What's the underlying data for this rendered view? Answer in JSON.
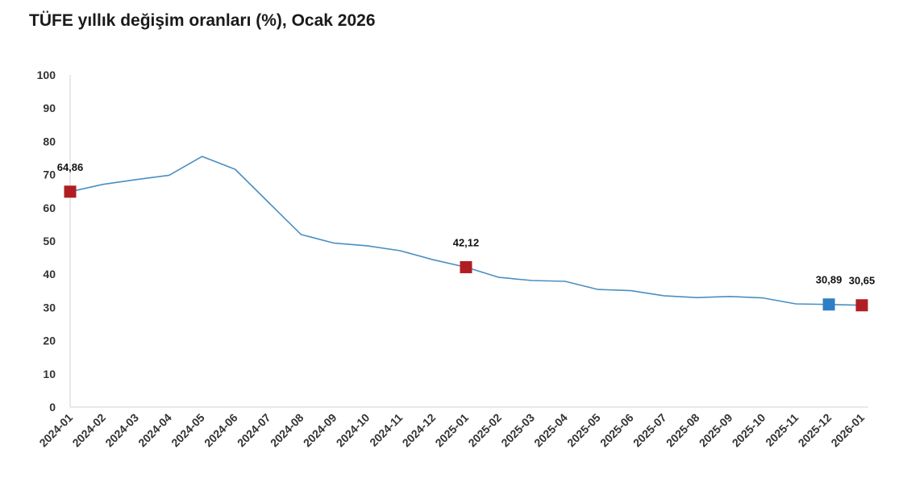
{
  "chart_data": {
    "type": "line",
    "title": "TÜFE yıllık değişim oranları (%), Ocak 2026",
    "xlabel": "",
    "ylabel": "",
    "ylim": [
      0,
      100
    ],
    "yticks": [
      0,
      10,
      20,
      30,
      40,
      50,
      60,
      70,
      80,
      90,
      100
    ],
    "grid": false,
    "x": [
      "2024-01",
      "2024-02",
      "2024-03",
      "2024-04",
      "2024-05",
      "2024-06",
      "2024-07",
      "2024-08",
      "2024-09",
      "2024-10",
      "2024-11",
      "2024-12",
      "2025-01",
      "2025-02",
      "2025-03",
      "2025-04",
      "2025-05",
      "2025-06",
      "2025-07",
      "2025-08",
      "2025-09",
      "2025-10",
      "2025-11",
      "2025-12",
      "2026-01"
    ],
    "series": [
      {
        "values": [
          64.86,
          67.07,
          68.5,
          69.8,
          75.45,
          71.6,
          61.78,
          51.97,
          49.38,
          48.58,
          47.09,
          44.38,
          42.12,
          39.05,
          38.1,
          37.86,
          35.41,
          35.05,
          33.52,
          32.95,
          33.29,
          32.87,
          31.07,
          30.89,
          30.65
        ],
        "color": "#4a8fc1"
      }
    ],
    "markers": [
      {
        "index": 0,
        "label": "64,86",
        "color": "#b01e23"
      },
      {
        "index": 12,
        "label": "42,12",
        "color": "#b01e23"
      },
      {
        "index": 23,
        "label": "30,89",
        "color": "#2e7fc4"
      },
      {
        "index": 24,
        "label": "30,65",
        "color": "#b01e23"
      }
    ]
  }
}
